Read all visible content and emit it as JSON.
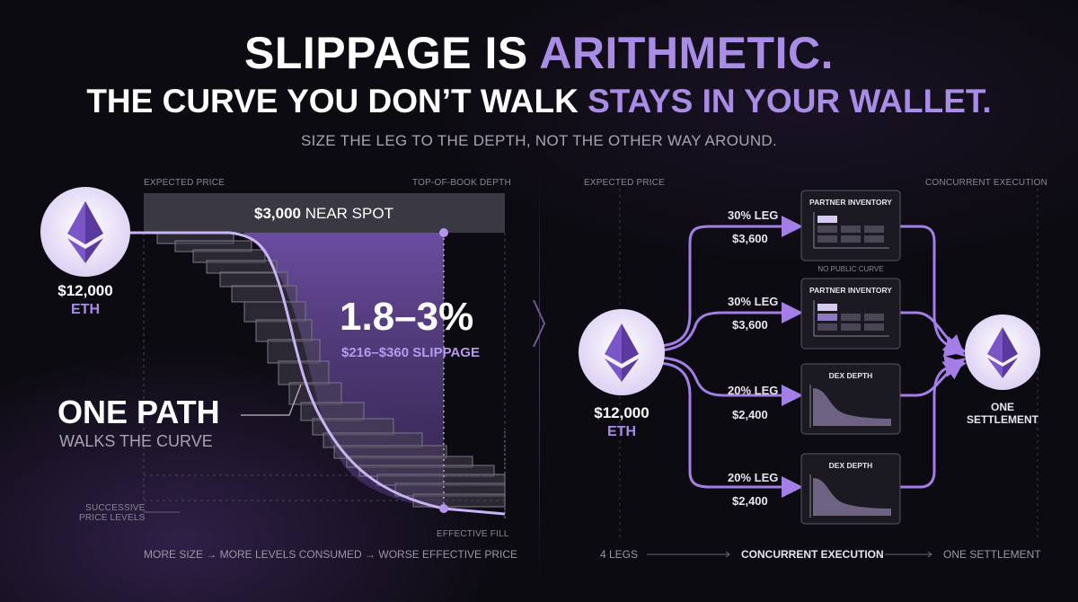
{
  "headline": {
    "line1_a": "SLIPPAGE IS ",
    "line1_b": "ARITHMETIC.",
    "line2_a": "THE CURVE YOU DON’T WALK ",
    "line2_b": "STAYS IN YOUR WALLET.",
    "subtitle": "SIZE THE LEG TO THE DEPTH, NOT THE OTHER WAY AROUND."
  },
  "left": {
    "label_expected_price": "EXPECTED PRICE",
    "label_top_of_book": "TOP-OF-BOOK DEPTH",
    "spot_bold": "$3,000",
    "spot_rest": " NEAR SPOT",
    "token_amount": "$12,000",
    "token_symbol": "ETH",
    "slippage_pct": "1.8–3%",
    "slippage_usd": "$216–$360 SLIPPAGE",
    "one_path": "ONE PATH",
    "walks_curve": "WALKS THE CURVE",
    "successive_1": "SUCCESSIVE",
    "successive_2": "PRICE LEVELS",
    "effective_fill": "EFFECTIVE FILL",
    "footer": "MORE SIZE → MORE LEVELS CONSUMED → WORSE EFFECTIVE PRICE"
  },
  "right": {
    "label_expected_price": "EXPECTED PRICE",
    "label_concurrent": "CONCURRENT EXECUTION",
    "token_amount": "$12,000",
    "token_symbol": "ETH",
    "settlement_1": "ONE",
    "settlement_2": "SETTLEMENT",
    "no_public_curve": "NO PUBLIC CURVE",
    "legs": [
      {
        "pct": "30% LEG",
        "amount": "$3,600",
        "venue": "PARTNER INVENTORY"
      },
      {
        "pct": "30% LEG",
        "amount": "$3,600",
        "venue": "PARTNER INVENTORY"
      },
      {
        "pct": "20% LEG",
        "amount": "$2,400",
        "venue": "DEX DEPTH"
      },
      {
        "pct": "20% LEG",
        "amount": "$2,400",
        "venue": "DEX DEPTH"
      }
    ],
    "footer_a": "4 LEGS",
    "footer_b": "CONCURRENT EXECUTION",
    "footer_c": "ONE SETTLEMENT"
  },
  "colors": {
    "accent": "#a98ce6",
    "background": "#0d0b12",
    "flow_line": "#a27ee6"
  },
  "icons": [
    "ethereum-icon",
    "arrow-right-icon",
    "chevron-right-icon"
  ]
}
